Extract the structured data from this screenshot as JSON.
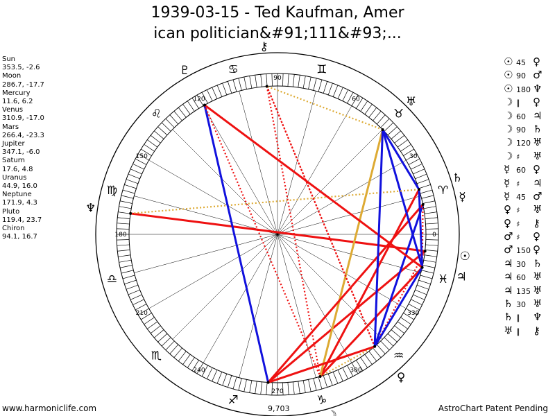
{
  "title_line1": "1939-03-15 - Ted Kaufman, Amer",
  "title_line2": "ican politician&#91;111&#93;...",
  "planets": [
    {
      "name": "Sun",
      "pos": "353.5, -2.6"
    },
    {
      "name": "Moon",
      "pos": "286.7, -17.7"
    },
    {
      "name": "Mercury",
      "pos": "11.6, 6.2"
    },
    {
      "name": "Venus",
      "pos": "310.9, -17.0"
    },
    {
      "name": "Mars",
      "pos": "266.4, -23.3"
    },
    {
      "name": "Jupiter",
      "pos": "347.1, -6.0"
    },
    {
      "name": "Saturn",
      "pos": "17.6, 4.8"
    },
    {
      "name": "Uranus",
      "pos": "44.9, 16.0"
    },
    {
      "name": "Neptune",
      "pos": "171.9, 4.3"
    },
    {
      "name": "Pluto",
      "pos": "119.4, 23.7"
    },
    {
      "name": "Chiron",
      "pos": "94.1, 16.7"
    }
  ],
  "aspects": [
    {
      "p1": "☉",
      "val": "45",
      "p2": "♀"
    },
    {
      "p1": "☉",
      "val": "90",
      "p2": "♂"
    },
    {
      "p1": "☉",
      "val": "180",
      "p2": "♆"
    },
    {
      "p1": "☽",
      "val": "∥",
      "p2": "♀"
    },
    {
      "p1": "☽",
      "val": "60",
      "p2": "♃"
    },
    {
      "p1": "☽",
      "val": "90",
      "p2": "♄"
    },
    {
      "p1": "☽",
      "val": "120",
      "p2": "♅"
    },
    {
      "p1": "☽",
      "val": "♯",
      "p2": "♅"
    },
    {
      "p1": "☿",
      "val": "60",
      "p2": "♀"
    },
    {
      "p1": "☿",
      "val": "♯",
      "p2": "♃"
    },
    {
      "p1": "☿",
      "val": "45",
      "p2": "♂"
    },
    {
      "p1": "♀",
      "val": "♯",
      "p2": "♅"
    },
    {
      "p1": "♀",
      "val": "♯",
      "p2": "⚷"
    },
    {
      "p1": "♂",
      "val": "♯",
      "p2": "♀"
    },
    {
      "p1": "♂",
      "val": "150",
      "p2": "♀"
    },
    {
      "p1": "♃",
      "val": "30",
      "p2": "♄"
    },
    {
      "p1": "♃",
      "val": "60",
      "p2": "♅"
    },
    {
      "p1": "♃",
      "val": "135",
      "p2": "♅"
    },
    {
      "p1": "♄",
      "val": "30",
      "p2": "♅"
    },
    {
      "p1": "♄",
      "val": "∥",
      "p2": "♆"
    },
    {
      "p1": "♅",
      "val": "∥",
      "p2": "⚷"
    }
  ],
  "wheel_degree_labels": [
    "0",
    "30",
    "60",
    "90",
    "120",
    "150",
    "180",
    "210",
    "240",
    "270",
    "300",
    "330"
  ],
  "sign_glyphs": [
    "♈",
    "♉",
    "♊",
    "♋",
    "♌",
    "♍",
    "♎",
    "♏",
    "♐",
    "♑",
    "♒",
    "♓"
  ],
  "bottom_label": "9,703",
  "footer_left": "www.harmoniclife.com",
  "footer_right": "AstroChart Patent Pending",
  "colors": {
    "red": "#ee1111",
    "blue": "#1111dd",
    "gold": "#ddaa33"
  }
}
